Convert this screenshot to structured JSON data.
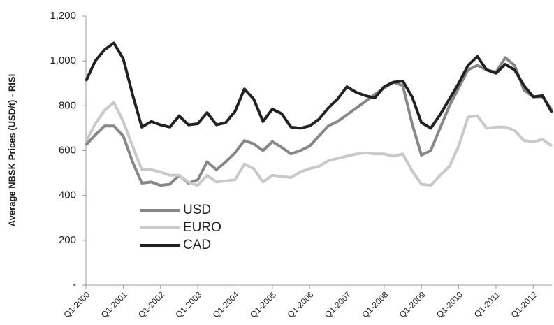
{
  "chart_data": {
    "type": "line",
    "ylabel": "Average NBSK Prices (USD/t) - RISI",
    "categories": [
      "Q1-2000",
      null,
      null,
      null,
      "Q1-2001",
      null,
      null,
      null,
      "Q1-2002",
      null,
      null,
      null,
      "Q1-2003",
      null,
      null,
      null,
      "Q1-2004",
      null,
      null,
      null,
      "Q1-2005",
      null,
      null,
      null,
      "Q1-2006",
      null,
      null,
      null,
      "Q1-2007",
      null,
      null,
      null,
      "Q1-2008",
      null,
      null,
      null,
      "Q1-2009",
      null,
      null,
      null,
      "Q1-2010",
      null,
      null,
      null,
      "Q1-2011",
      null,
      null,
      null,
      "Q1-2012",
      null,
      null
    ],
    "series": [
      {
        "name": "USD",
        "color": "#878787",
        "values": [
          625,
          670,
          710,
          710,
          665,
          550,
          455,
          460,
          445,
          450,
          490,
          455,
          470,
          550,
          515,
          550,
          590,
          645,
          630,
          600,
          640,
          615,
          585,
          600,
          620,
          665,
          710,
          730,
          760,
          790,
          820,
          850,
          880,
          905,
          890,
          720,
          580,
          600,
          700,
          800,
          880,
          960,
          980,
          960,
          950,
          1015,
          980,
          870,
          840,
          840,
          780
        ]
      },
      {
        "name": "EURO",
        "color": "#c9c9c9",
        "values": [
          640,
          720,
          780,
          815,
          730,
          620,
          515,
          515,
          505,
          490,
          490,
          460,
          445,
          490,
          460,
          465,
          470,
          540,
          520,
          460,
          490,
          485,
          480,
          505,
          520,
          530,
          555,
          565,
          575,
          585,
          590,
          585,
          585,
          575,
          585,
          510,
          450,
          445,
          490,
          530,
          620,
          750,
          755,
          700,
          705,
          705,
          690,
          645,
          640,
          650,
          620
        ]
      },
      {
        "name": "CAD",
        "color": "#222222",
        "values": [
          910,
          1000,
          1050,
          1080,
          1010,
          850,
          705,
          730,
          715,
          705,
          755,
          715,
          720,
          770,
          715,
          725,
          775,
          875,
          830,
          730,
          785,
          765,
          705,
          700,
          710,
          740,
          790,
          830,
          885,
          860,
          845,
          835,
          885,
          905,
          910,
          840,
          725,
          700,
          760,
          830,
          900,
          980,
          1020,
          960,
          945,
          985,
          960,
          890,
          840,
          845,
          770
        ]
      }
    ],
    "ylim": [
      0,
      1200
    ],
    "yticks": [
      {
        "value": 0,
        "label": "-"
      },
      200,
      400,
      600,
      800,
      {
        "value": 1000,
        "label": "1,000"
      },
      {
        "value": 1200,
        "label": "1,200"
      }
    ]
  }
}
